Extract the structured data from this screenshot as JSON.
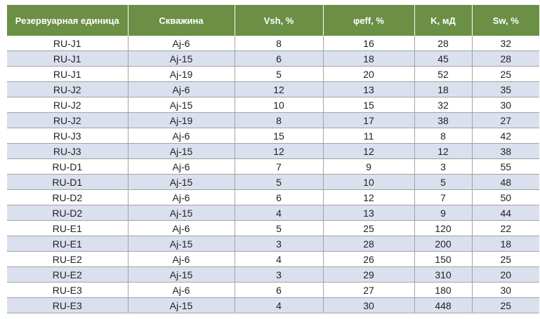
{
  "table": {
    "headers": [
      "Резервуарная единица",
      "Скважина",
      "Vsh, %",
      "φeff, %",
      "K, мД",
      "Sw, %"
    ],
    "rows": [
      [
        "RU-J1",
        "Aj-6",
        "8",
        "16",
        "28",
        "32"
      ],
      [
        "RU-J1",
        "Aj-15",
        "6",
        "18",
        "45",
        "28"
      ],
      [
        "RU-J1",
        "Aj-19",
        "5",
        "20",
        "52",
        "25"
      ],
      [
        "RU-J2",
        "Aj-6",
        "12",
        "13",
        "18",
        "35"
      ],
      [
        "RU-J2",
        "Aj-15",
        "10",
        "15",
        "32",
        "30"
      ],
      [
        "RU-J2",
        "Aj-19",
        "8",
        "17",
        "38",
        "27"
      ],
      [
        "RU-J3",
        "Aj-6",
        "15",
        "11",
        "8",
        "42"
      ],
      [
        "RU-J3",
        "Aj-15",
        "12",
        "12",
        "12",
        "38"
      ],
      [
        "RU-D1",
        "Aj-6",
        "7",
        "9",
        "3",
        "55"
      ],
      [
        "RU-D1",
        "Aj-15",
        "5",
        "10",
        "5",
        "48"
      ],
      [
        "RU-D2",
        "Aj-6",
        "6",
        "12",
        "7",
        "50"
      ],
      [
        "RU-D2",
        "Aj-15",
        "4",
        "13",
        "9",
        "44"
      ],
      [
        "RU-E1",
        "Aj-6",
        "5",
        "25",
        "120",
        "22"
      ],
      [
        "RU-E1",
        "Aj-15",
        "3",
        "28",
        "200",
        "18"
      ],
      [
        "RU-E2",
        "Aj-6",
        "4",
        "26",
        "150",
        "25"
      ],
      [
        "RU-E2",
        "Aj-15",
        "3",
        "29",
        "310",
        "20"
      ],
      [
        "RU-E3",
        "Aj-6",
        "6",
        "27",
        "180",
        "30"
      ],
      [
        "RU-E3",
        "Aj-15",
        "4",
        "30",
        "448",
        "25"
      ]
    ]
  },
  "colors": {
    "header_bg": "#6b8f45",
    "stripe_bg": "#dbe0ef"
  }
}
